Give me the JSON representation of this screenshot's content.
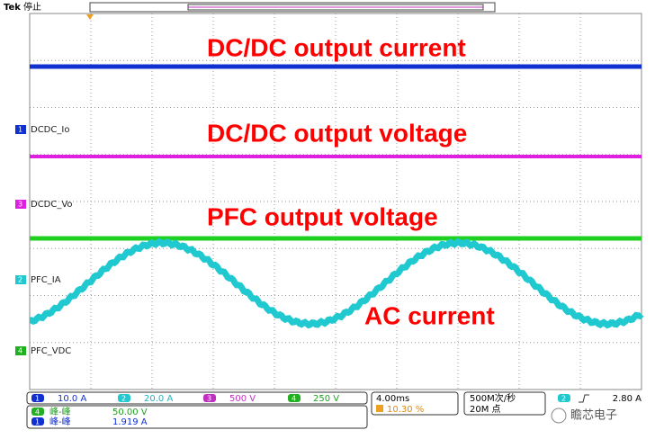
{
  "header": {
    "brand": "Tek",
    "status": "停止"
  },
  "annotations": [
    "DC/DC output current",
    "DC/DC output voltage",
    "PFC output voltage",
    "AC current"
  ],
  "channel_labels": [
    {
      "number": "1",
      "name": "DCDC_Io"
    },
    {
      "number": "3",
      "name": "DCDC_Vo"
    },
    {
      "number": "2",
      "name": "PFC_IA"
    },
    {
      "number": "4",
      "name": "PFC_VDC"
    }
  ],
  "scales": [
    {
      "channel": "1",
      "value": "10.0 A"
    },
    {
      "channel": "2",
      "value": "20.0 A"
    },
    {
      "channel": "3",
      "value": "500 V"
    },
    {
      "channel": "4",
      "value": "250 V"
    }
  ],
  "timebase": {
    "scale": "4.00ms",
    "trigger_position": "10.30 %"
  },
  "acquisition": {
    "rate": "500M次/秒",
    "points": "20M 点"
  },
  "trigger": {
    "channel": "2",
    "level": "2.80 A"
  },
  "measurements": [
    {
      "channel": "4",
      "label": "峰-峰",
      "value": "50.00 V"
    },
    {
      "channel": "1",
      "label": "峰-峰",
      "value": "1.919 A"
    }
  ],
  "watermark": "瞻芯电子"
}
